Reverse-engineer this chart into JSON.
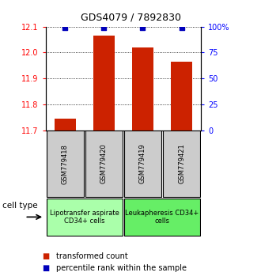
{
  "title": "GDS4079 / 7892830",
  "samples": [
    "GSM779418",
    "GSM779420",
    "GSM779419",
    "GSM779421"
  ],
  "red_values": [
    11.745,
    12.065,
    12.02,
    11.965
  ],
  "blue_values": [
    99,
    99,
    99,
    99
  ],
  "ylim_left": [
    11.7,
    12.1
  ],
  "ylim_right": [
    0,
    100
  ],
  "yticks_left": [
    11.7,
    11.8,
    11.9,
    12.0,
    12.1
  ],
  "yticks_right": [
    0,
    25,
    50,
    75,
    100
  ],
  "ytick_labels_right": [
    "0",
    "25",
    "50",
    "75",
    "100%"
  ],
  "cell_type_groups": [
    {
      "label": "Lipotransfer aspirate\nCD34+ cells",
      "samples": [
        0,
        1
      ],
      "color": "#aaffaa"
    },
    {
      "label": "Leukapheresis CD34+\ncells",
      "samples": [
        2,
        3
      ],
      "color": "#66ee66"
    }
  ],
  "legend_red_label": "transformed count",
  "legend_blue_label": "percentile rank within the sample",
  "cell_type_label": "cell type",
  "bar_width": 0.55,
  "bar_color": "#cc2200",
  "dot_color": "#0000bb",
  "dot_size": 25,
  "background_color": "#ffffff",
  "sample_box_color": "#cccccc",
  "title_fontsize": 9,
  "tick_fontsize": 7,
  "sample_fontsize": 6,
  "celltype_fontsize": 6,
  "legend_fontsize": 7
}
